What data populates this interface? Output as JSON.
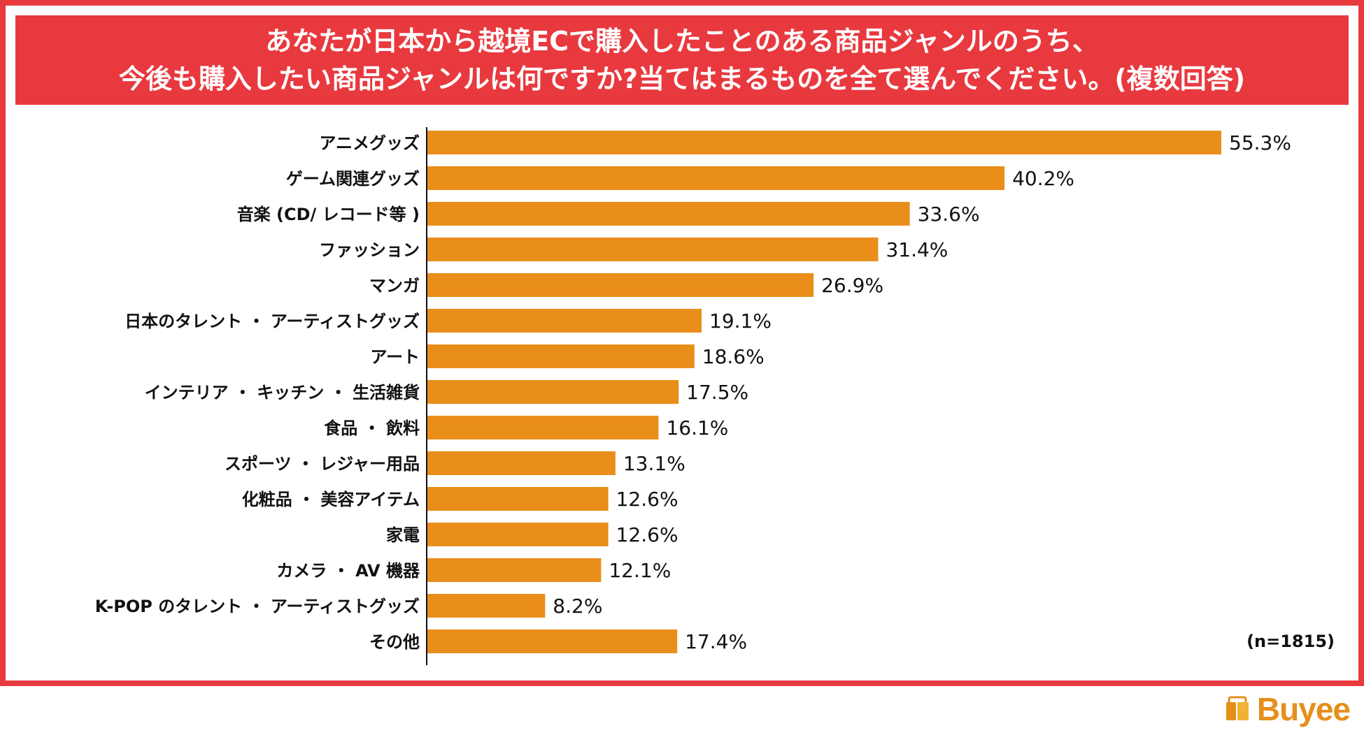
{
  "chart_data": {
    "type": "bar",
    "orientation": "horizontal",
    "title_lines": [
      "あなたが日本から越境ECで購入したことのある商品ジャンルのうち、",
      "今後も購入したい商品ジャンルは何ですか?当てはまるものを全て選んでください。(複数回答)"
    ],
    "categories": [
      "アニメグッズ",
      "ゲーム関連グッズ",
      "音楽 (CD/ レコード等 )",
      "ファッション",
      "マンガ",
      "日本のタレント ・ アーティストグッズ",
      "アート",
      "インテリア ・ キッチン ・ 生活雑貨",
      "食品 ・ 飲料",
      "スポーツ ・ レジャー用品",
      "化粧品 ・ 美容アイテム",
      "家電",
      "カメラ ・ AV 機器",
      "K-POP のタレント ・ アーティストグッズ",
      "その他"
    ],
    "values": [
      55.3,
      40.2,
      33.6,
      31.4,
      26.9,
      19.1,
      18.6,
      17.5,
      16.1,
      13.1,
      12.6,
      12.6,
      12.1,
      8.2,
      17.4
    ],
    "value_labels": [
      "55.3%",
      "40.2%",
      "33.6%",
      "31.4%",
      "26.9%",
      "19.1%",
      "18.6%",
      "17.5%",
      "16.1%",
      "13.1%",
      "12.6%",
      "12.6%",
      "12.1%",
      "8.2%",
      "17.4%"
    ],
    "unit": "%",
    "xlim": [
      0,
      60
    ],
    "grid": false,
    "legend": "none",
    "bar_color": "#e98e1a",
    "sample_note": "(n=1815)"
  },
  "colors": {
    "accent": "#e8393f",
    "bar": "#e98e1a",
    "logo": "#e58f1a"
  },
  "brand": {
    "name": "Buyee",
    "icon": "shopping-bag-icon"
  }
}
